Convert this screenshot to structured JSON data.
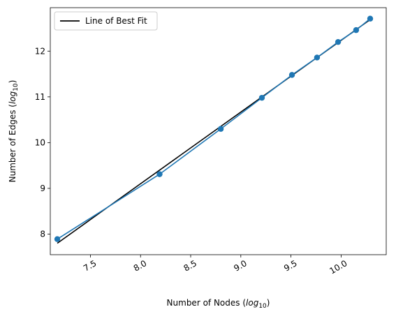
{
  "chart_data": {
    "type": "line",
    "title": "",
    "xlabel": {
      "prefix": "Number of Nodes (",
      "italic": "log",
      "sub": "10",
      "suffix": ")"
    },
    "ylabel": {
      "prefix": "Number of Edges (",
      "italic": "log",
      "sub": "10",
      "suffix": ")"
    },
    "xlim": [
      7.1,
      10.45
    ],
    "ylim": [
      7.55,
      12.95
    ],
    "x_ticks": [
      7.5,
      8.0,
      8.5,
      9.0,
      9.5,
      10.0
    ],
    "x_tick_labels": [
      "7.5",
      "8.0",
      "8.5",
      "9.0",
      "9.5",
      "10.0"
    ],
    "y_ticks": [
      8,
      9,
      10,
      11,
      12
    ],
    "y_tick_labels": [
      "8",
      "9",
      "10",
      "11",
      "12"
    ],
    "x_tick_rotation_deg": -30,
    "grid": false,
    "legend_position": "upper-left",
    "series": [
      {
        "name": "",
        "kind": "line-with-markers",
        "color": "#1f77b4",
        "x": [
          7.17,
          8.19,
          8.8,
          9.21,
          9.51,
          9.76,
          9.97,
          10.15,
          10.29
        ],
        "y": [
          7.89,
          9.31,
          10.3,
          10.98,
          11.48,
          11.86,
          12.2,
          12.46,
          12.71
        ]
      },
      {
        "name": "Line of Best Fit",
        "kind": "line",
        "color": "#000000",
        "x": [
          7.17,
          10.29
        ],
        "y": [
          7.8,
          12.69
        ]
      }
    ]
  }
}
